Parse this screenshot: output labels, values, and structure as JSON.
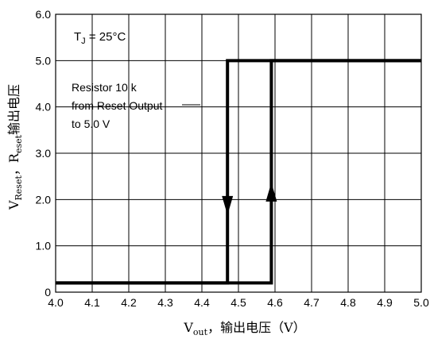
{
  "chart_data": {
    "type": "line",
    "xlabel": "Vₒᵤₜ，输出电压（V）",
    "ylabel": "Vᵣₑₛₑₜ，Rₑₛₑₜ输出电压",
    "xlim": [
      4.0,
      5.0
    ],
    "ylim": [
      0,
      6.0
    ],
    "x_ticks": [
      "4.0",
      "4.1",
      "4.2",
      "4.3",
      "4.4",
      "4.5",
      "4.6",
      "4.7",
      "4.8",
      "4.9",
      "5.0"
    ],
    "y_ticks": [
      "0",
      "1.0",
      "2.0",
      "3.0",
      "4.0",
      "5.0",
      "6.0"
    ],
    "grid": true,
    "series": [
      {
        "direction": "falling",
        "x": [
          5.0,
          4.47,
          4.47,
          4.0
        ],
        "y": [
          5.0,
          5.0,
          0.2,
          0.2
        ]
      },
      {
        "direction": "rising",
        "x": [
          4.0,
          4.59,
          4.59,
          5.0
        ],
        "y": [
          0.2,
          0.2,
          5.0,
          5.0
        ]
      }
    ],
    "annotations": [
      {
        "id": "tj",
        "text": "T_J = 25°C"
      },
      {
        "id": "resistor",
        "lines": [
          "Resistor 10 k",
          "from Reset Output",
          "to 5.0 V"
        ]
      }
    ]
  }
}
